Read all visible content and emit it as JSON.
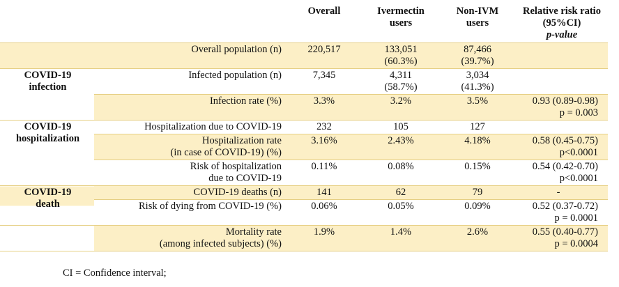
{
  "header": {
    "overall": "Overall",
    "ivm": [
      "Ivermectin",
      "users"
    ],
    "nonivm": [
      "Non-IVM",
      "users"
    ],
    "rr": [
      "Relative risk ratio",
      "(95%CI)"
    ],
    "pvalue": "p-value"
  },
  "groups": {
    "infection": [
      "COVID-19",
      "infection"
    ],
    "hospitalization": [
      "COVID-19",
      "hospitalization"
    ],
    "death": [
      "COVID-19",
      "death"
    ]
  },
  "rows": [
    {
      "label": [
        "Overall population (n)"
      ],
      "overall": "220,517",
      "ivm": [
        "133,051",
        "(60.3%)"
      ],
      "nonivm": [
        "87,466",
        "(39.7%)"
      ],
      "rr": [
        "",
        ""
      ]
    },
    {
      "label": [
        "Infected population (n)"
      ],
      "overall": "7,345",
      "ivm": [
        "4,311",
        "(58.7%)"
      ],
      "nonivm": [
        "3,034",
        "(41.3%)"
      ],
      "rr": [
        "",
        ""
      ]
    },
    {
      "label": [
        "Infection rate (%)"
      ],
      "overall": "3.3%",
      "ivm": [
        "3.2%",
        ""
      ],
      "nonivm": [
        "3.5%",
        ""
      ],
      "rr": [
        "0.93 (0.89-0.98)",
        "p = 0.003"
      ]
    },
    {
      "label": [
        "Hospitalization due to COVID-19"
      ],
      "overall": "232",
      "ivm": [
        "105",
        ""
      ],
      "nonivm": [
        "127",
        ""
      ],
      "rr": [
        "",
        ""
      ]
    },
    {
      "label": [
        "Hospitalization rate",
        "(in case of COVID-19) (%)"
      ],
      "overall": "3.16%",
      "ivm": [
        "2.43%",
        ""
      ],
      "nonivm": [
        "4.18%",
        ""
      ],
      "rr": [
        "0.58 (0.45-0.75)",
        "p<0.0001"
      ]
    },
    {
      "label": [
        "Risk of hospitalization",
        "due to COVID-19"
      ],
      "overall": "0.11%",
      "ivm": [
        "0.08%",
        ""
      ],
      "nonivm": [
        "0.15%",
        ""
      ],
      "rr": [
        "0.54 (0.42-0.70)",
        "p<0.0001"
      ]
    },
    {
      "label": [
        "COVID-19 deaths (n)"
      ],
      "overall": "141",
      "ivm": [
        "62",
        ""
      ],
      "nonivm": [
        "79",
        ""
      ],
      "rr": [
        "-",
        ""
      ]
    },
    {
      "label": [
        "Risk of dying from COVID-19 (%)"
      ],
      "overall": "0.06%",
      "ivm": [
        "0.05%",
        ""
      ],
      "nonivm": [
        "0.09%",
        ""
      ],
      "rr": [
        "0.52 (0.37-0.72)",
        "p = 0.0001"
      ]
    },
    {
      "label": [
        "Mortality rate",
        "(among infected subjects) (%)"
      ],
      "overall": "1.9%",
      "ivm": [
        "1.4%",
        ""
      ],
      "nonivm": [
        "2.6%",
        ""
      ],
      "rr": [
        "0.55 (0.40-0.77)",
        "p = 0.0004"
      ]
    }
  ],
  "footnote": "CI = Confidence interval;"
}
